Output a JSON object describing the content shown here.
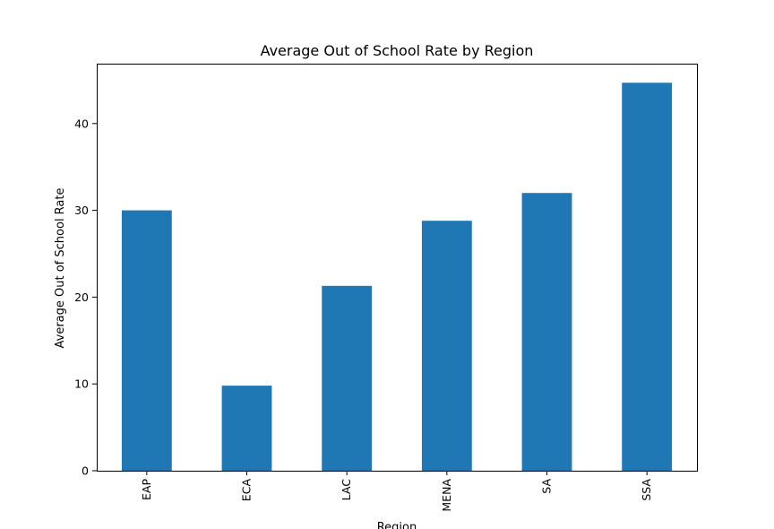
{
  "chart_data": {
    "type": "bar",
    "title": "Average Out of School Rate by Region",
    "xlabel": "Region",
    "ylabel": "Average Out of School Rate",
    "categories": [
      "EAP",
      "ECA",
      "LAC",
      "MENA",
      "SA",
      "SSA"
    ],
    "values": [
      30.0,
      9.8,
      21.3,
      28.8,
      32.0,
      44.7
    ],
    "ylim": [
      0,
      46.9
    ],
    "yticks": [
      0,
      10,
      20,
      30,
      40
    ],
    "bar_color": "#1f77b4",
    "grid": false,
    "legend": "none"
  }
}
